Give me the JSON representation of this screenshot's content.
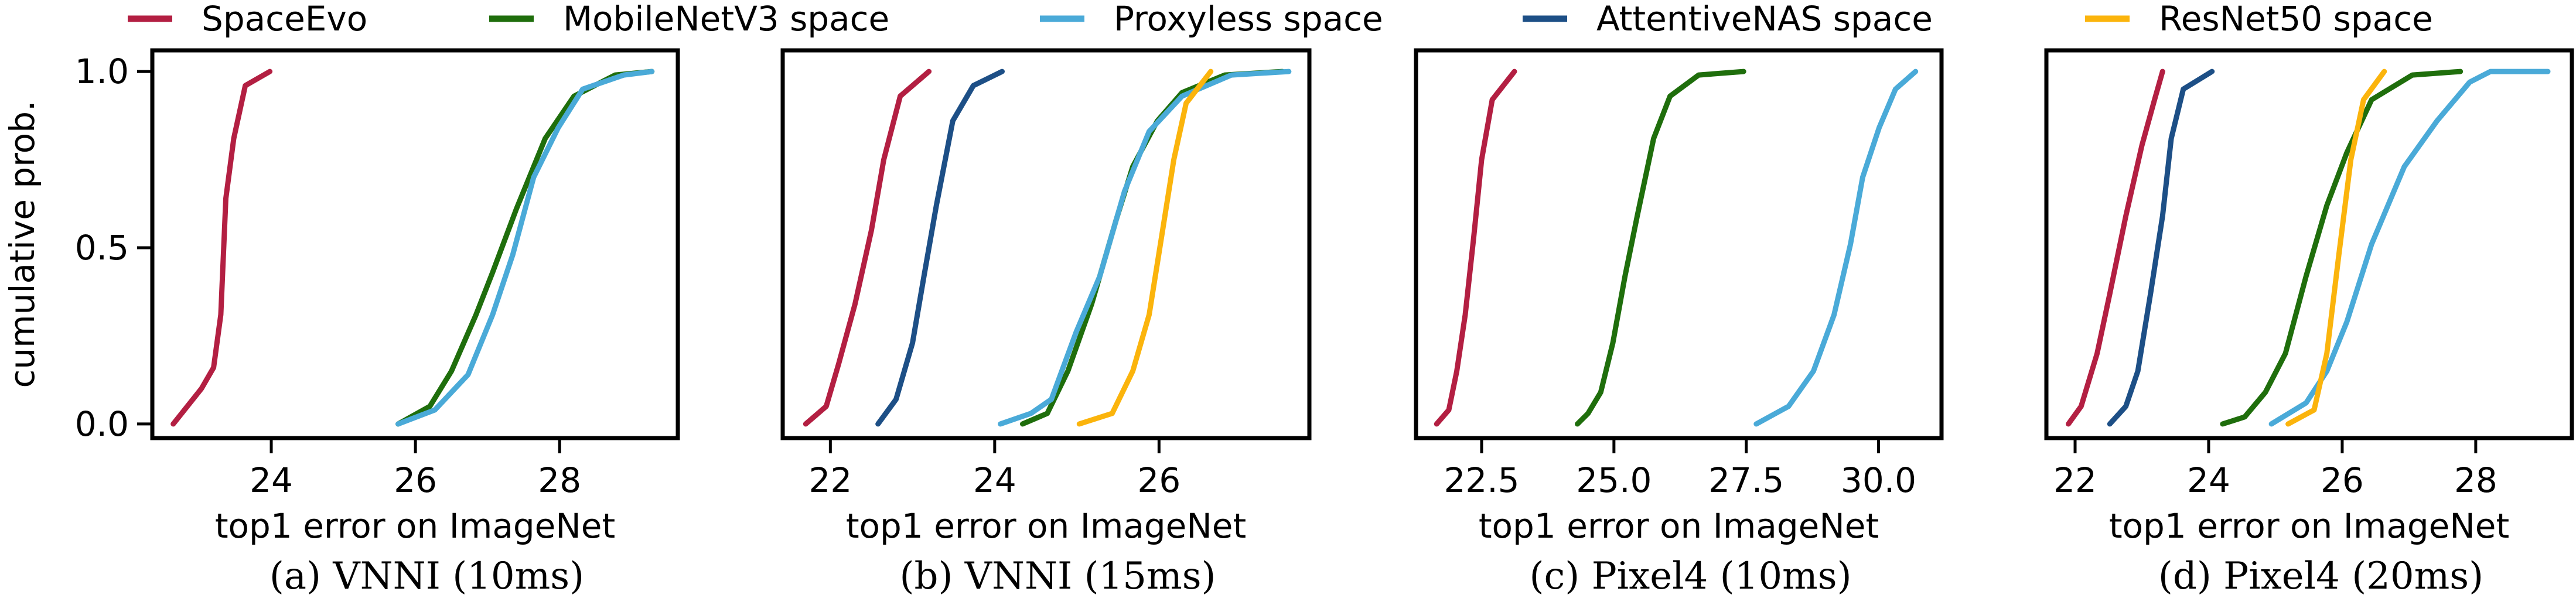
{
  "legend": {
    "position": "top",
    "entries": [
      {
        "name": "SpaceEvo",
        "color": "#b31f42"
      },
      {
        "name": "MobileNetV3 space",
        "color": "#1f6e0c"
      },
      {
        "name": "Proxyless space",
        "color": "#4aaad8"
      },
      {
        "name": "AttentiveNAS space",
        "color": "#1d4f86"
      },
      {
        "name": "ResNet50 space",
        "color": "#fbb40c"
      }
    ]
  },
  "ylabel": "cumulative prob.",
  "chart_data": [
    {
      "type": "line",
      "caption": "(a) VNNI (10ms)",
      "xlabel": "top1 error on ImageNet",
      "ylabel": "cumulative prob.",
      "xlim": [
        22.35,
        29.64
      ],
      "ylim": [
        -0.04,
        1.06
      ],
      "xticks": [
        24,
        26,
        28
      ],
      "xtick_labels": [
        "24",
        "26",
        "28"
      ],
      "yticks": [
        0,
        0.5,
        1
      ],
      "ytick_labels": [
        "0.0",
        "0.5",
        "1.0"
      ],
      "grid": false,
      "series": [
        {
          "name": "SpaceEvo",
          "x": [
            22.64,
            23.03,
            23.2,
            23.3,
            23.37,
            23.48,
            23.64,
            23.98
          ],
          "y": [
            0,
            0.1,
            0.16,
            0.31,
            0.64,
            0.81,
            0.96,
            1.0
          ]
        },
        {
          "name": "MobileNetV3 space",
          "x": [
            25.76,
            26.2,
            26.5,
            26.84,
            27.07,
            27.4,
            27.8,
            28.2,
            28.77,
            29.28
          ],
          "y": [
            0,
            0.05,
            0.15,
            0.31,
            0.43,
            0.61,
            0.81,
            0.93,
            0.99,
            1.0
          ]
        },
        {
          "name": "Proxyless space",
          "x": [
            25.76,
            26.27,
            26.73,
            27.07,
            27.35,
            27.64,
            27.98,
            28.32,
            28.89,
            29.28
          ],
          "y": [
            0,
            0.04,
            0.14,
            0.31,
            0.48,
            0.7,
            0.84,
            0.95,
            0.99,
            1.0
          ]
        }
      ]
    },
    {
      "type": "line",
      "caption": "(b) VNNI (15ms)",
      "xlabel": "top1 error on ImageNet",
      "xlim": [
        21.42,
        27.83
      ],
      "ylim": [
        -0.04,
        1.06
      ],
      "xticks": [
        22,
        24,
        26
      ],
      "xtick_labels": [
        "22",
        "24",
        "26"
      ],
      "yticks": [],
      "ytick_labels": [],
      "grid": false,
      "series": [
        {
          "name": "SpaceEvo",
          "x": [
            21.7,
            21.95,
            22.1,
            22.3,
            22.5,
            22.65,
            22.85,
            23.2
          ],
          "y": [
            0,
            0.05,
            0.17,
            0.34,
            0.55,
            0.75,
            0.93,
            1.0
          ]
        },
        {
          "name": "AttentiveNAS space",
          "x": [
            22.58,
            22.8,
            23.0,
            23.14,
            23.29,
            23.49,
            23.74,
            24.09
          ],
          "y": [
            0,
            0.07,
            0.23,
            0.42,
            0.62,
            0.86,
            0.96,
            1.0
          ]
        },
        {
          "name": "MobileNetV3 space",
          "x": [
            24.34,
            24.64,
            24.89,
            25.18,
            25.48,
            25.68,
            25.98,
            26.28,
            26.8,
            27.5
          ],
          "y": [
            0,
            0.03,
            0.15,
            0.34,
            0.58,
            0.73,
            0.86,
            0.94,
            0.99,
            1.0
          ]
        },
        {
          "name": "Proxyless space",
          "x": [
            24.07,
            24.44,
            24.69,
            24.99,
            25.28,
            25.58,
            25.88,
            26.28,
            26.88,
            27.58
          ],
          "y": [
            0,
            0.03,
            0.07,
            0.26,
            0.42,
            0.66,
            0.83,
            0.93,
            0.99,
            1.0
          ]
        },
        {
          "name": "ResNet50 space",
          "x": [
            25.03,
            25.43,
            25.68,
            25.88,
            26.03,
            26.18,
            26.33,
            26.63
          ],
          "y": [
            0,
            0.03,
            0.15,
            0.31,
            0.53,
            0.75,
            0.91,
            1.0
          ]
        }
      ]
    },
    {
      "type": "line",
      "caption": "(c) Pixel4 (10ms)",
      "xlabel": "top1 error on ImageNet",
      "xlim": [
        21.26,
        31.19
      ],
      "ylim": [
        -0.04,
        1.06
      ],
      "xticks": [
        22.5,
        25,
        27.5,
        30
      ],
      "xtick_labels": [
        "22.5",
        "25.0",
        "27.5",
        "30.0"
      ],
      "yticks": [],
      "ytick_labels": [],
      "grid": false,
      "series": [
        {
          "name": "SpaceEvo",
          "x": [
            21.65,
            21.88,
            22.03,
            22.19,
            22.35,
            22.5,
            22.7,
            23.12
          ],
          "y": [
            0,
            0.04,
            0.15,
            0.31,
            0.53,
            0.75,
            0.92,
            1.0
          ]
        },
        {
          "name": "MobileNetV3 space",
          "x": [
            24.31,
            24.51,
            24.75,
            24.98,
            25.21,
            25.44,
            25.75,
            26.06,
            26.6,
            27.45
          ],
          "y": [
            0,
            0.03,
            0.09,
            0.23,
            0.42,
            0.59,
            0.81,
            0.93,
            0.99,
            1.0
          ]
        },
        {
          "name": "Proxyless space",
          "x": [
            27.69,
            28.3,
            28.77,
            29.16,
            29.47,
            29.7,
            30.01,
            30.32,
            30.7
          ],
          "y": [
            0,
            0.05,
            0.15,
            0.31,
            0.51,
            0.7,
            0.84,
            0.95,
            1.0
          ]
        }
      ]
    },
    {
      "type": "line",
      "caption": "(d) Pixel4 (20ms)",
      "xlabel": "top1 error on ImageNet",
      "xlim": [
        21.57,
        29.44
      ],
      "ylim": [
        -0.04,
        1.06
      ],
      "xticks": [
        22,
        24,
        26,
        28
      ],
      "xtick_labels": [
        "22",
        "24",
        "26",
        "28"
      ],
      "yticks": [],
      "ytick_labels": [],
      "grid": false,
      "series": [
        {
          "name": "SpaceEvo",
          "x": [
            21.9,
            22.09,
            22.33,
            22.52,
            22.76,
            23.0,
            23.19,
            23.31
          ],
          "y": [
            0,
            0.05,
            0.2,
            0.37,
            0.59,
            0.79,
            0.92,
            1.0
          ]
        },
        {
          "name": "AttentiveNAS space",
          "x": [
            22.52,
            22.76,
            22.94,
            23.13,
            23.31,
            23.44,
            23.62,
            24.05
          ],
          "y": [
            0,
            0.05,
            0.15,
            0.37,
            0.59,
            0.81,
            0.95,
            1.0
          ]
        },
        {
          "name": "MobileNetV3 space",
          "x": [
            24.21,
            24.54,
            24.85,
            25.15,
            25.46,
            25.77,
            26.07,
            26.44,
            27.05,
            27.77
          ],
          "y": [
            0,
            0.02,
            0.09,
            0.2,
            0.42,
            0.62,
            0.77,
            0.92,
            0.99,
            1.0
          ]
        },
        {
          "name": "Proxyless space",
          "x": [
            24.94,
            25.46,
            25.77,
            26.07,
            26.44,
            26.93,
            27.42,
            27.91,
            28.22,
            29.08
          ],
          "y": [
            0,
            0.06,
            0.15,
            0.29,
            0.51,
            0.73,
            0.86,
            0.97,
            1.0,
            1.0
          ]
        },
        {
          "name": "ResNet50 space",
          "x": [
            25.19,
            25.58,
            25.77,
            25.95,
            26.13,
            26.32,
            26.63
          ],
          "y": [
            0,
            0.04,
            0.2,
            0.48,
            0.75,
            0.92,
            1.0
          ]
        }
      ]
    }
  ]
}
